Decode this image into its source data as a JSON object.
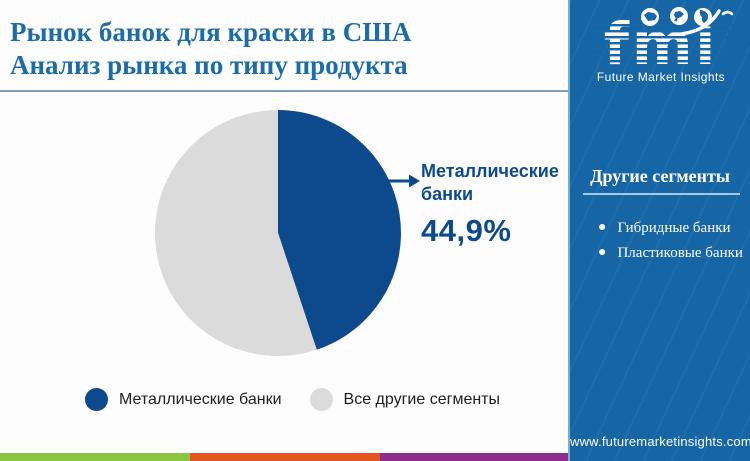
{
  "header": {
    "title_line1": "Рынок банок для краски в США",
    "title_line2": "Анализ рынка по типу продукта"
  },
  "logo": {
    "monogram": "fmi",
    "name": "Future Market Insights"
  },
  "chart_data": {
    "type": "pie",
    "title": "Рынок банок для краски в США — анализ рынка по типу продукта",
    "slices": [
      {
        "label": "Металлические банки",
        "value": 44.9,
        "color": "#0D4A8D"
      },
      {
        "label": "Все другие сегменты",
        "value": 55.1,
        "color": "#DBDBDB"
      }
    ],
    "start_angle_deg": 0,
    "direction": "clockwise",
    "legend_position": "bottom",
    "callout": {
      "label_line1": "Металлические",
      "label_line2": "банки",
      "value_text": "44,9%"
    }
  },
  "sidebar": {
    "heading": "Другие сегменты",
    "items": [
      "Гибридные банки",
      "Пластиковые банки"
    ],
    "url": "www.futuremarketinsights.com"
  },
  "colors": {
    "title_blue": "#1B6CA9",
    "sidebar_bg": "#1667A8",
    "pie_primary": "#0D4A8D",
    "pie_secondary": "#DBDBDB",
    "stripe_green": "#8CC540",
    "stripe_orange": "#E2561F",
    "stripe_purple": "#8E2E8C"
  }
}
